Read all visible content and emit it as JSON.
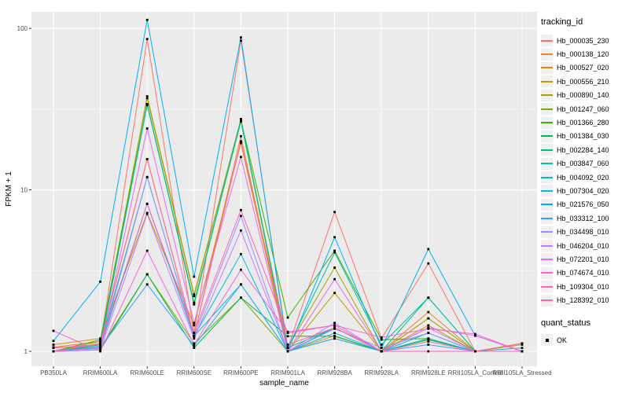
{
  "chart_data": {
    "type": "line",
    "xlabel": "sample_name",
    "ylabel": "FPKM + 1",
    "yscale": "log10",
    "yticks": [
      1,
      10,
      100
    ],
    "ytick_labels": [
      "1",
      "10",
      "100"
    ],
    "yminor": [
      3.1623,
      31.623
    ],
    "categories": [
      "PB350LA",
      "RRIM600LA",
      "RRIM600LE",
      "RRIM600SE",
      "RRIM600PE",
      "RRIM901LA",
      "RRIM928BA",
      "RRIM928LA",
      "RRIM928LE",
      "RRII105LA_Control",
      "RRII105LA_Stressed"
    ],
    "legend_title": "tracking_id",
    "point_legend": {
      "title": "quant_status",
      "label": "OK"
    },
    "grid": true,
    "legend_position": "right",
    "panel_bg": "#EBEBEB",
    "gridline_color": "#FFFFFF",
    "tick_label_color": "#4D4D4D",
    "axis_title_color": "#000000",
    "tick_mark_color": "#333333",
    "point_color": "#000000",
    "series": [
      {
        "name": "Hb_000035_230",
        "color": "#F8766D",
        "values": [
          1.05,
          1.1,
          86,
          1.3,
          84,
          1.05,
          7.3,
          1.2,
          3.5,
          1.0,
          1.12
        ]
      },
      {
        "name": "Hb_000138_120",
        "color": "#EA8331",
        "values": [
          1.06,
          1.15,
          15.5,
          1.25,
          21.5,
          1.0,
          1.4,
          1.0,
          1.75,
          1.0,
          1.12
        ]
      },
      {
        "name": "Hb_000527_020",
        "color": "#D89000",
        "values": [
          1.1,
          1.2,
          7.2,
          1.45,
          19.5,
          1.0,
          1.25,
          1.0,
          1.6,
          1.0,
          1.1
        ]
      },
      {
        "name": "Hb_000556_210",
        "color": "#C09B00",
        "values": [
          1.0,
          1.12,
          38,
          2.25,
          27,
          1.0,
          2.3,
          1.0,
          1.45,
          1.0,
          1.0
        ]
      },
      {
        "name": "Hb_000890_140",
        "color": "#A3A500",
        "values": [
          1.0,
          1.15,
          37,
          2.2,
          27.5,
          1.06,
          3.3,
          1.0,
          1.6,
          1.0,
          1.0
        ]
      },
      {
        "name": "Hb_001247_060",
        "color": "#7CAE00",
        "values": [
          1.0,
          1.05,
          3.0,
          1.12,
          2.15,
          1.0,
          1.2,
          1.0,
          1.18,
          1.0,
          1.0
        ]
      },
      {
        "name": "Hb_001366_280",
        "color": "#39B600",
        "values": [
          1.0,
          1.18,
          34,
          1.95,
          27,
          1.62,
          4.2,
          1.18,
          1.2,
          1.0,
          1.0
        ]
      },
      {
        "name": "Hb_001384_030",
        "color": "#00BB4E",
        "values": [
          1.0,
          1.02,
          3.0,
          1.05,
          2.15,
          1.24,
          1.24,
          1.0,
          1.18,
          1.0,
          1.0
        ]
      },
      {
        "name": "Hb_002284_140",
        "color": "#00BF7D",
        "values": [
          1.0,
          1.08,
          34,
          2.0,
          26.5,
          1.05,
          1.4,
          1.0,
          2.15,
          1.0,
          1.0
        ]
      },
      {
        "name": "Hb_003847_060",
        "color": "#00C1A3",
        "values": [
          1.0,
          1.1,
          33.5,
          2.0,
          27,
          1.05,
          4.1,
          1.1,
          2.15,
          1.0,
          1.0
        ]
      },
      {
        "name": "Hb_004092_020",
        "color": "#00BFC4",
        "values": [
          1.0,
          1.1,
          12,
          1.24,
          2.6,
          1.0,
          1.4,
          1.0,
          1.3,
          1.0,
          1.05
        ]
      },
      {
        "name": "Hb_007304_020",
        "color": "#00BAE0",
        "values": [
          1.0,
          1.06,
          8.2,
          1.24,
          4.0,
          1.0,
          1.3,
          1.0,
          1.2,
          1.0,
          1.0
        ]
      },
      {
        "name": "Hb_021576_050",
        "color": "#00B0F6",
        "values": [
          1.16,
          2.7,
          113,
          2.9,
          88,
          1.0,
          5.1,
          1.05,
          4.3,
          1.25,
          1.0
        ]
      },
      {
        "name": "Hb_033312_100",
        "color": "#35A2FF",
        "values": [
          1.0,
          1.05,
          2.6,
          1.08,
          2.6,
          1.0,
          1.2,
          1.0,
          1.1,
          1.0,
          1.0
        ]
      },
      {
        "name": "Hb_034498_010",
        "color": "#9590FF",
        "values": [
          1.0,
          1.04,
          12,
          1.24,
          6.9,
          1.0,
          1.38,
          1.05,
          1.3,
          1.0,
          1.0
        ]
      },
      {
        "name": "Hb_046204_010",
        "color": "#C77CFF",
        "values": [
          1.0,
          1.02,
          7.1,
          1.2,
          5.6,
          1.0,
          1.5,
          1.0,
          1.4,
          1.0,
          1.0
        ]
      },
      {
        "name": "Hb_072201_010",
        "color": "#E76BF3",
        "values": [
          1.0,
          1.05,
          24,
          1.5,
          16,
          1.0,
          2.8,
          1.0,
          1.4,
          1.25,
          1.0
        ]
      },
      {
        "name": "Hb_074674_010",
        "color": "#FA62DB",
        "values": [
          1.34,
          1.0,
          4.2,
          1.1,
          3.2,
          1.32,
          1.45,
          1.22,
          1.38,
          1.28,
          1.0
        ]
      },
      {
        "name": "Hb_109304_010",
        "color": "#FF62BC",
        "values": [
          1.05,
          1.1,
          8.2,
          1.3,
          7.5,
          1.3,
          1.45,
          1.0,
          1.0,
          1.0,
          1.0
        ]
      },
      {
        "name": "Hb_128392_010",
        "color": "#FF6A98",
        "values": [
          1.0,
          1.12,
          15.5,
          1.25,
          20,
          1.1,
          1.4,
          1.0,
          1.15,
          1.0,
          1.12
        ]
      }
    ]
  }
}
